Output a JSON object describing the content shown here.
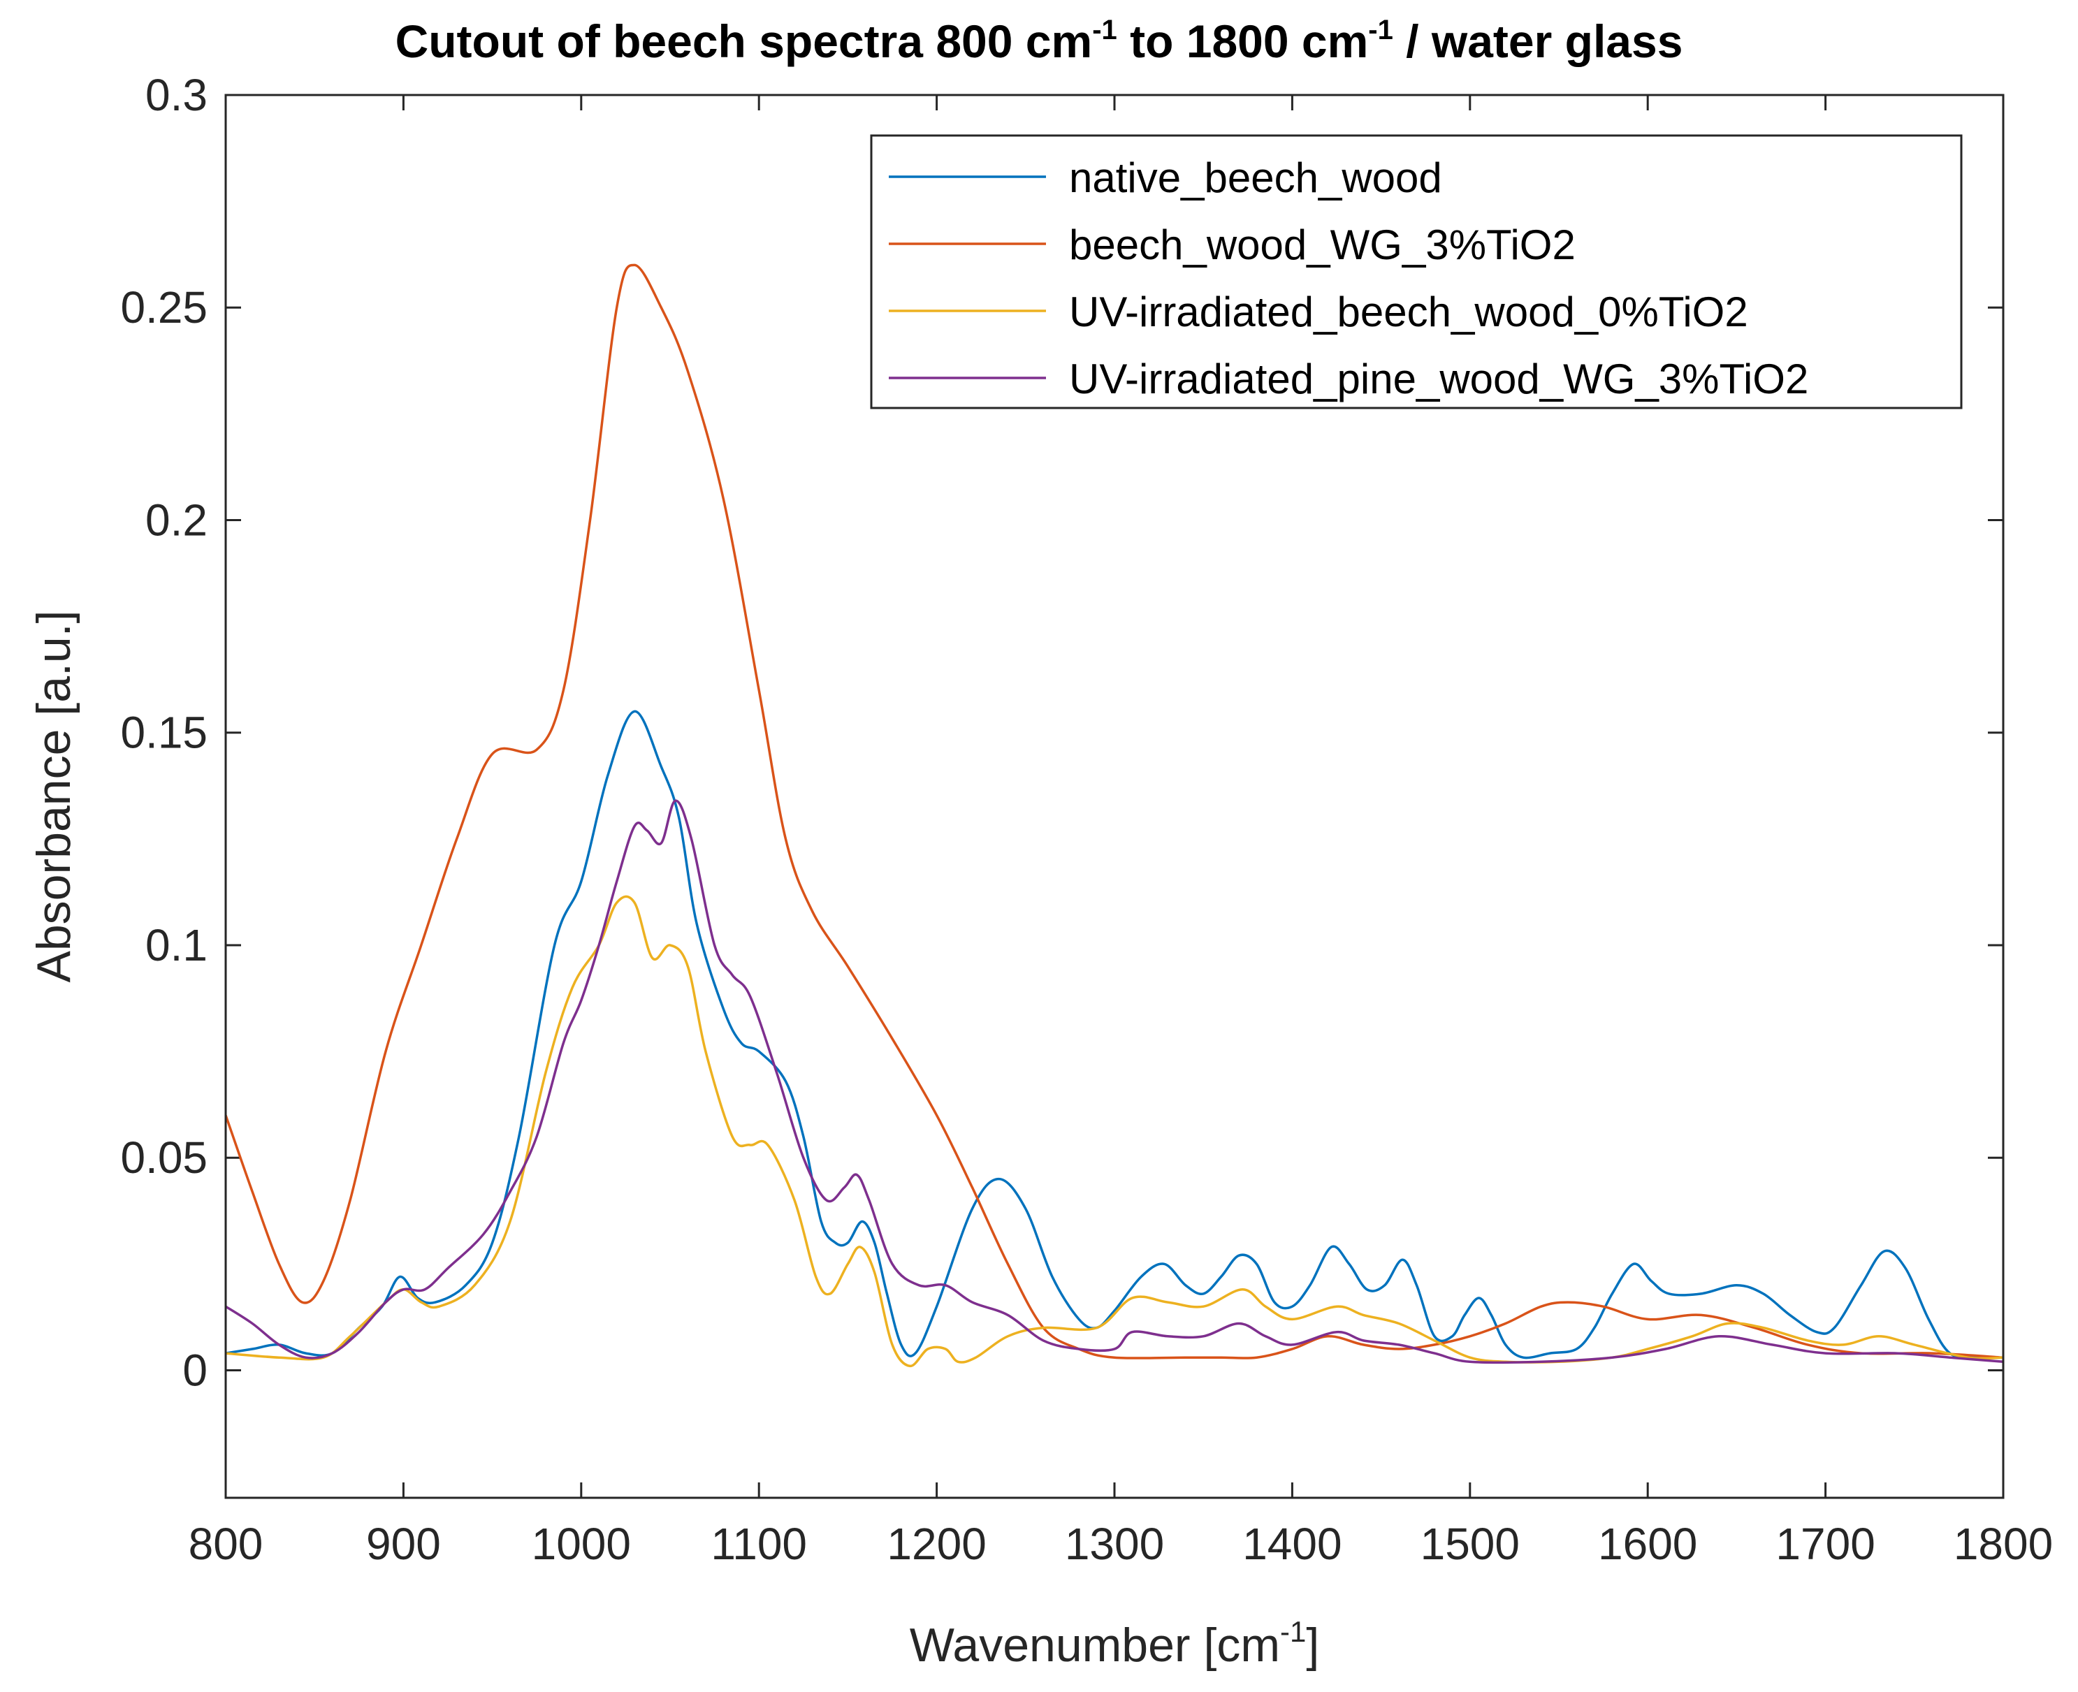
{
  "chart_data": {
    "type": "line",
    "title": {
      "part1": "Cutout of beech spectra 800 cm",
      "sup1": "-1",
      "part2": " to 1800 cm",
      "sup2": "-1",
      "part3": " / water glass"
    },
    "xlabel": {
      "main": "Wavenumber [cm",
      "sup": "-1",
      "end": "]"
    },
    "ylabel": "Absorbance [a.u.]",
    "xlim": [
      800,
      1800
    ],
    "ylim": [
      -0.03,
      0.3
    ],
    "xticks": [
      "800",
      "900",
      "1000",
      "1100",
      "1200",
      "1300",
      "1400",
      "1500",
      "1600",
      "1700",
      "1800"
    ],
    "yticks": [
      "0",
      "0.05",
      "0.1",
      "0.15",
      "0.2",
      "0.25",
      "0.3"
    ],
    "grid": false,
    "legend_position": "top-right",
    "series": [
      {
        "name": "native_beech_wood",
        "color": "#0072BD",
        "points": [
          [
            800,
            0.004
          ],
          [
            815,
            0.005
          ],
          [
            830,
            0.006
          ],
          [
            845,
            0.004
          ],
          [
            860,
            0.004
          ],
          [
            875,
            0.01
          ],
          [
            888,
            0.015
          ],
          [
            898,
            0.022
          ],
          [
            908,
            0.017
          ],
          [
            918,
            0.016
          ],
          [
            935,
            0.02
          ],
          [
            950,
            0.03
          ],
          [
            965,
            0.055
          ],
          [
            985,
            0.1
          ],
          [
            1000,
            0.115
          ],
          [
            1015,
            0.14
          ],
          [
            1030,
            0.155
          ],
          [
            1045,
            0.142
          ],
          [
            1055,
            0.13
          ],
          [
            1065,
            0.105
          ],
          [
            1080,
            0.085
          ],
          [
            1090,
            0.077
          ],
          [
            1100,
            0.075
          ],
          [
            1115,
            0.068
          ],
          [
            1125,
            0.055
          ],
          [
            1135,
            0.035
          ],
          [
            1143,
            0.03
          ],
          [
            1150,
            0.03
          ],
          [
            1158,
            0.035
          ],
          [
            1165,
            0.03
          ],
          [
            1172,
            0.018
          ],
          [
            1180,
            0.006
          ],
          [
            1188,
            0.004
          ],
          [
            1200,
            0.015
          ],
          [
            1220,
            0.038
          ],
          [
            1235,
            0.045
          ],
          [
            1250,
            0.038
          ],
          [
            1265,
            0.022
          ],
          [
            1280,
            0.012
          ],
          [
            1290,
            0.01
          ],
          [
            1300,
            0.014
          ],
          [
            1315,
            0.022
          ],
          [
            1328,
            0.025
          ],
          [
            1340,
            0.02
          ],
          [
            1350,
            0.018
          ],
          [
            1360,
            0.022
          ],
          [
            1370,
            0.027
          ],
          [
            1380,
            0.025
          ],
          [
            1390,
            0.016
          ],
          [
            1400,
            0.015
          ],
          [
            1410,
            0.02
          ],
          [
            1422,
            0.029
          ],
          [
            1432,
            0.025
          ],
          [
            1442,
            0.019
          ],
          [
            1452,
            0.02
          ],
          [
            1462,
            0.026
          ],
          [
            1470,
            0.02
          ],
          [
            1480,
            0.008
          ],
          [
            1490,
            0.008
          ],
          [
            1497,
            0.013
          ],
          [
            1505,
            0.017
          ],
          [
            1512,
            0.013
          ],
          [
            1520,
            0.006
          ],
          [
            1530,
            0.003
          ],
          [
            1545,
            0.004
          ],
          [
            1560,
            0.005
          ],
          [
            1570,
            0.01
          ],
          [
            1580,
            0.018
          ],
          [
            1592,
            0.025
          ],
          [
            1602,
            0.021
          ],
          [
            1612,
            0.018
          ],
          [
            1630,
            0.018
          ],
          [
            1650,
            0.02
          ],
          [
            1665,
            0.018
          ],
          [
            1680,
            0.013
          ],
          [
            1695,
            0.009
          ],
          [
            1705,
            0.01
          ],
          [
            1720,
            0.02
          ],
          [
            1733,
            0.028
          ],
          [
            1745,
            0.024
          ],
          [
            1758,
            0.012
          ],
          [
            1770,
            0.004
          ],
          [
            1785,
            0.003
          ],
          [
            1800,
            0.003
          ]
        ]
      },
      {
        "name": "beech_wood_WG_3%TiO2",
        "color": "#D95319",
        "points": [
          [
            800,
            0.06
          ],
          [
            815,
            0.042
          ],
          [
            830,
            0.025
          ],
          [
            843,
            0.016
          ],
          [
            855,
            0.021
          ],
          [
            870,
            0.04
          ],
          [
            890,
            0.075
          ],
          [
            910,
            0.1
          ],
          [
            930,
            0.125
          ],
          [
            950,
            0.145
          ],
          [
            975,
            0.146
          ],
          [
            990,
            0.16
          ],
          [
            1005,
            0.2
          ],
          [
            1020,
            0.25
          ],
          [
            1030,
            0.26
          ],
          [
            1045,
            0.25
          ],
          [
            1060,
            0.235
          ],
          [
            1080,
            0.205
          ],
          [
            1100,
            0.16
          ],
          [
            1115,
            0.125
          ],
          [
            1130,
            0.108
          ],
          [
            1150,
            0.095
          ],
          [
            1175,
            0.078
          ],
          [
            1200,
            0.06
          ],
          [
            1220,
            0.043
          ],
          [
            1240,
            0.025
          ],
          [
            1260,
            0.01
          ],
          [
            1280,
            0.005
          ],
          [
            1300,
            0.003
          ],
          [
            1340,
            0.003
          ],
          [
            1360,
            0.003
          ],
          [
            1380,
            0.003
          ],
          [
            1400,
            0.005
          ],
          [
            1420,
            0.008
          ],
          [
            1440,
            0.006
          ],
          [
            1460,
            0.005
          ],
          [
            1480,
            0.006
          ],
          [
            1500,
            0.008
          ],
          [
            1520,
            0.011
          ],
          [
            1540,
            0.015
          ],
          [
            1555,
            0.016
          ],
          [
            1575,
            0.015
          ],
          [
            1600,
            0.012
          ],
          [
            1630,
            0.013
          ],
          [
            1660,
            0.01
          ],
          [
            1690,
            0.006
          ],
          [
            1720,
            0.004
          ],
          [
            1760,
            0.004
          ],
          [
            1800,
            0.003
          ]
        ]
      },
      {
        "name": "UV-irradiated_beech_wood_0%TiO2",
        "color": "#EDB120",
        "points": [
          [
            800,
            0.004
          ],
          [
            830,
            0.003
          ],
          [
            855,
            0.003
          ],
          [
            870,
            0.008
          ],
          [
            890,
            0.016
          ],
          [
            900,
            0.019
          ],
          [
            910,
            0.016
          ],
          [
            920,
            0.015
          ],
          [
            940,
            0.02
          ],
          [
            960,
            0.035
          ],
          [
            980,
            0.07
          ],
          [
            995,
            0.09
          ],
          [
            1010,
            0.1
          ],
          [
            1020,
            0.11
          ],
          [
            1030,
            0.11
          ],
          [
            1040,
            0.097
          ],
          [
            1050,
            0.1
          ],
          [
            1060,
            0.095
          ],
          [
            1070,
            0.075
          ],
          [
            1085,
            0.055
          ],
          [
            1095,
            0.053
          ],
          [
            1105,
            0.053
          ],
          [
            1120,
            0.04
          ],
          [
            1132,
            0.022
          ],
          [
            1140,
            0.018
          ],
          [
            1150,
            0.025
          ],
          [
            1157,
            0.029
          ],
          [
            1165,
            0.023
          ],
          [
            1175,
            0.006
          ],
          [
            1185,
            0.001
          ],
          [
            1195,
            0.005
          ],
          [
            1205,
            0.005
          ],
          [
            1212,
            0.002
          ],
          [
            1222,
            0.003
          ],
          [
            1240,
            0.008
          ],
          [
            1260,
            0.01
          ],
          [
            1290,
            0.01
          ],
          [
            1310,
            0.017
          ],
          [
            1330,
            0.016
          ],
          [
            1350,
            0.015
          ],
          [
            1372,
            0.019
          ],
          [
            1385,
            0.015
          ],
          [
            1400,
            0.012
          ],
          [
            1425,
            0.015
          ],
          [
            1440,
            0.013
          ],
          [
            1460,
            0.011
          ],
          [
            1480,
            0.007
          ],
          [
            1500,
            0.003
          ],
          [
            1520,
            0.002
          ],
          [
            1550,
            0.002
          ],
          [
            1580,
            0.003
          ],
          [
            1600,
            0.005
          ],
          [
            1625,
            0.008
          ],
          [
            1645,
            0.011
          ],
          [
            1665,
            0.01
          ],
          [
            1690,
            0.007
          ],
          [
            1710,
            0.006
          ],
          [
            1730,
            0.008
          ],
          [
            1750,
            0.006
          ],
          [
            1780,
            0.003
          ],
          [
            1800,
            0.003
          ]
        ]
      },
      {
        "name": "UV-irradiated_pine_wood_WG_3%TiO2",
        "color": "#7E2F8E",
        "points": [
          [
            800,
            0.015
          ],
          [
            815,
            0.011
          ],
          [
            830,
            0.006
          ],
          [
            845,
            0.003
          ],
          [
            860,
            0.004
          ],
          [
            875,
            0.009
          ],
          [
            890,
            0.016
          ],
          [
            900,
            0.019
          ],
          [
            912,
            0.019
          ],
          [
            925,
            0.024
          ],
          [
            945,
            0.032
          ],
          [
            960,
            0.042
          ],
          [
            975,
            0.055
          ],
          [
            990,
            0.077
          ],
          [
            1000,
            0.087
          ],
          [
            1010,
            0.1
          ],
          [
            1020,
            0.115
          ],
          [
            1030,
            0.128
          ],
          [
            1037,
            0.127
          ],
          [
            1045,
            0.124
          ],
          [
            1053,
            0.134
          ],
          [
            1062,
            0.125
          ],
          [
            1075,
            0.1
          ],
          [
            1085,
            0.093
          ],
          [
            1095,
            0.088
          ],
          [
            1110,
            0.07
          ],
          [
            1125,
            0.05
          ],
          [
            1138,
            0.04
          ],
          [
            1148,
            0.043
          ],
          [
            1155,
            0.046
          ],
          [
            1162,
            0.04
          ],
          [
            1175,
            0.025
          ],
          [
            1190,
            0.02
          ],
          [
            1205,
            0.02
          ],
          [
            1220,
            0.016
          ],
          [
            1240,
            0.013
          ],
          [
            1260,
            0.007
          ],
          [
            1280,
            0.005
          ],
          [
            1300,
            0.005
          ],
          [
            1310,
            0.009
          ],
          [
            1330,
            0.008
          ],
          [
            1350,
            0.008
          ],
          [
            1370,
            0.011
          ],
          [
            1385,
            0.008
          ],
          [
            1400,
            0.006
          ],
          [
            1425,
            0.009
          ],
          [
            1440,
            0.007
          ],
          [
            1460,
            0.006
          ],
          [
            1480,
            0.004
          ],
          [
            1500,
            0.002
          ],
          [
            1540,
            0.002
          ],
          [
            1580,
            0.003
          ],
          [
            1610,
            0.005
          ],
          [
            1640,
            0.008
          ],
          [
            1670,
            0.006
          ],
          [
            1700,
            0.004
          ],
          [
            1740,
            0.004
          ],
          [
            1770,
            0.003
          ],
          [
            1800,
            0.002
          ]
        ]
      }
    ]
  }
}
